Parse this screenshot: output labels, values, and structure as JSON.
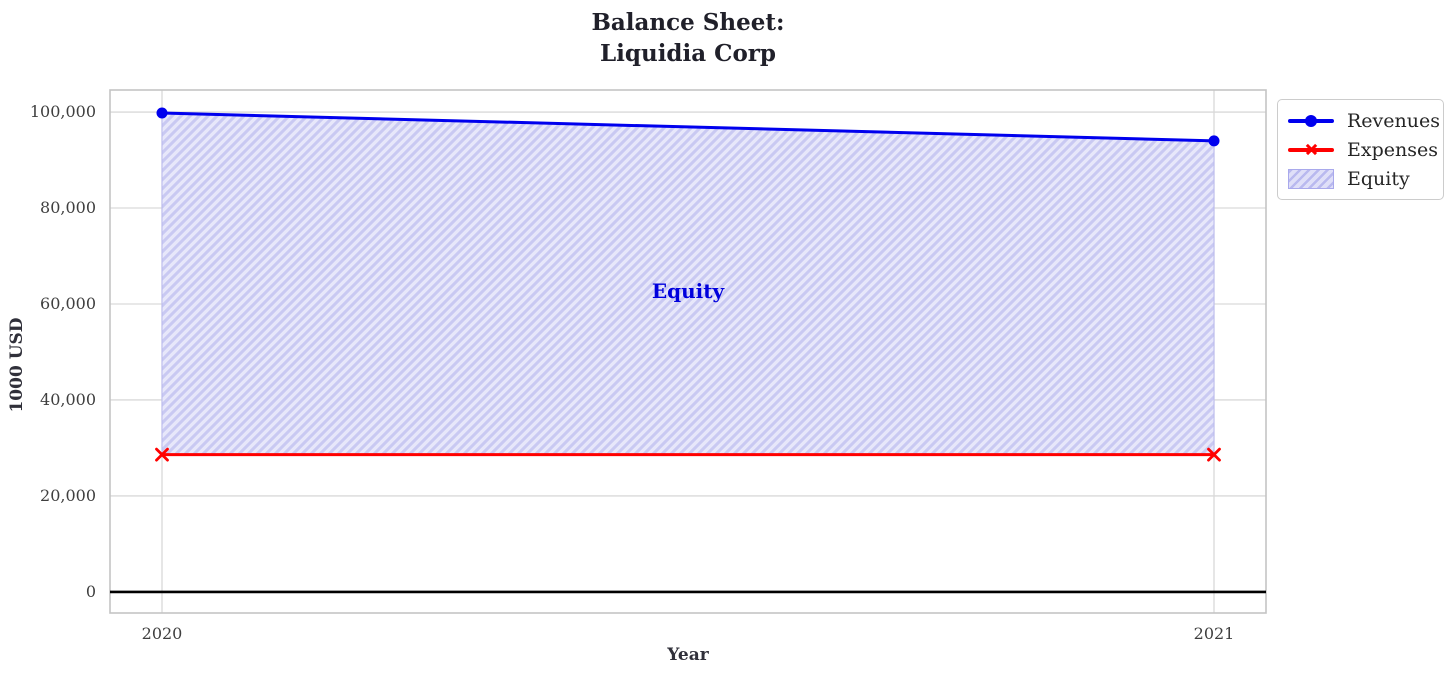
{
  "figure": {
    "title": "Balance Sheet:\nLiquidia Corp"
  },
  "chart_data": {
    "type": "line",
    "title": "Balance Sheet: Liquidia Corp",
    "xlabel": "Year",
    "ylabel": "1000 USD",
    "categories": [
      "2020",
      "2021"
    ],
    "series": [
      {
        "name": "Revenues",
        "values": [
          99800,
          94000
        ],
        "color": "#0000ee",
        "marker": "circle",
        "line_width": 3
      },
      {
        "name": "Expenses",
        "values": [
          28600,
          28600
        ],
        "color": "#ff0000",
        "marker": "x",
        "line_width": 3
      }
    ],
    "area": {
      "name": "Equity",
      "between": [
        "Revenues",
        "Expenses"
      ],
      "label": "Equity",
      "label_value": 62700,
      "fill": "#e7e7fa",
      "hatch": "/",
      "hatch_color": "#c9c9f2",
      "edge_color": "#b9b9ef"
    },
    "yticks": [
      0,
      20000,
      40000,
      60000,
      80000,
      100000
    ],
    "ytick_labels": [
      "0",
      "20,000",
      "40,000",
      "60,000",
      "80,000",
      "100,000"
    ],
    "ylim": [
      -4400,
      104600
    ],
    "grid": true,
    "grid_color": "#d9d9d9",
    "spine_color": "#c4c4c4",
    "zero_line_color": "#000000",
    "legend_position": "outside-upper-right"
  },
  "axes": {
    "xlabel": "Year",
    "ylabel": "1000 USD"
  },
  "legend": {
    "items": [
      {
        "label": "Revenues",
        "swatch": "line-circle",
        "color": "#0000ee"
      },
      {
        "label": "Expenses",
        "swatch": "line-x",
        "color": "#ff0000"
      },
      {
        "label": "Equity",
        "swatch": "hatched-patch",
        "color": "#c9c9f2"
      }
    ]
  },
  "annotation": {
    "label": "Equity",
    "color": "#0000dd"
  }
}
